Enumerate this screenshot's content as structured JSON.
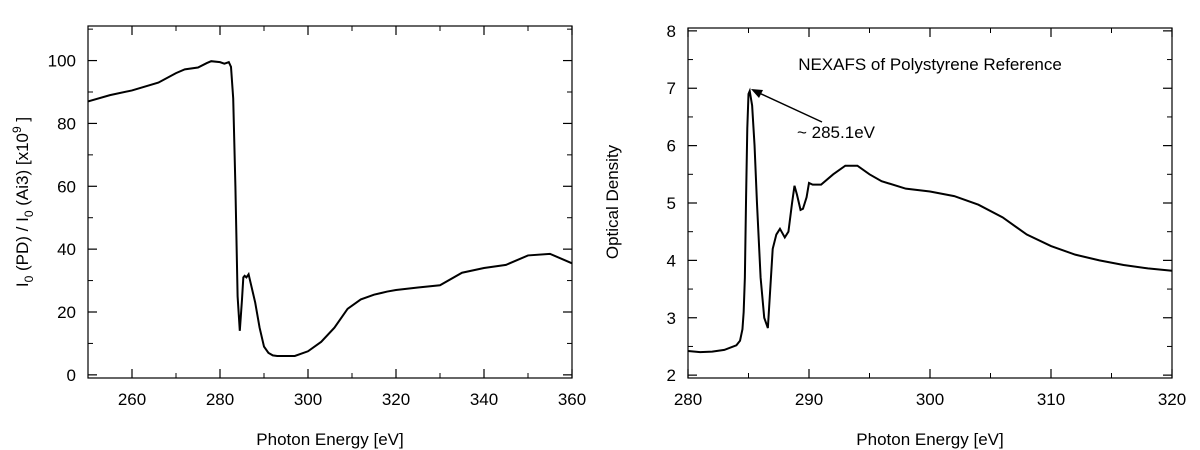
{
  "chart_data": [
    {
      "type": "line",
      "title": "",
      "xlabel": "Photon Energy [eV]",
      "ylabel_parts": {
        "i1": "I",
        "sub1": "0",
        "mid": " (PD) / I",
        "sub2": "0",
        "tail": " (Ai3) [x10",
        "sup": "9",
        "end": " ]"
      },
      "xlim": [
        250,
        360
      ],
      "ylim": [
        -1,
        111
      ],
      "xticks": [
        260,
        280,
        300,
        320,
        340,
        360
      ],
      "yticks": [
        0,
        20,
        40,
        60,
        80,
        100
      ],
      "series": [
        {
          "x": [
            250,
            255,
            260,
            266,
            270,
            272,
            275,
            277,
            278,
            280,
            281,
            282,
            282.5,
            283,
            283.5,
            284,
            284.5,
            285,
            285.3,
            285.6,
            286,
            286.5,
            287,
            287.5,
            288,
            289,
            290,
            291,
            292,
            293,
            295,
            297,
            300,
            303,
            306,
            309,
            312,
            315,
            318,
            320,
            325,
            330,
            335,
            340,
            345,
            350,
            355,
            360
          ],
          "y": [
            87,
            89,
            90.5,
            93,
            96,
            97.2,
            97.8,
            99.2,
            99.8,
            99.5,
            99,
            99.5,
            98,
            88,
            60,
            25,
            14,
            24,
            31,
            31.5,
            31,
            32,
            29,
            26,
            23,
            15,
            9,
            7,
            6.2,
            6,
            6,
            6,
            7.5,
            10.5,
            15,
            21,
            24,
            25.5,
            26.5,
            27,
            27.8,
            28.5,
            32.5,
            34,
            35,
            38,
            38.5,
            35.5
          ]
        }
      ]
    },
    {
      "type": "line",
      "title": "NEXAFS of Polystyrene Reference",
      "xlabel": "Photon Energy [eV]",
      "ylabel": "Optical Density",
      "xlim": [
        280,
        320
      ],
      "ylim": [
        1.95,
        8.05
      ],
      "xticks": [
        280,
        290,
        300,
        310,
        320
      ],
      "yticks": [
        2,
        3,
        4,
        5,
        6,
        7,
        8
      ],
      "annotation": {
        "text": "~ 285.1eV",
        "x": 285.1,
        "y": 6.95
      },
      "series": [
        {
          "x": [
            280,
            281,
            282,
            283,
            284,
            284.3,
            284.5,
            284.6,
            284.7,
            284.8,
            284.9,
            285,
            285.1,
            285.3,
            285.5,
            285.7,
            286,
            286.3,
            286.6,
            287,
            287.3,
            287.6,
            288,
            288.3,
            288.6,
            288.8,
            289,
            289.3,
            289.5,
            289.8,
            290,
            290.3,
            291,
            292,
            293,
            294,
            295,
            296,
            298,
            300,
            302,
            304,
            306,
            308,
            310,
            312,
            314,
            316,
            318,
            320
          ],
          "y": [
            2.42,
            2.4,
            2.41,
            2.44,
            2.52,
            2.6,
            2.8,
            3.1,
            3.7,
            5.1,
            6.3,
            6.9,
            6.95,
            6.7,
            6.0,
            5.0,
            3.7,
            3.0,
            2.82,
            4.2,
            4.45,
            4.55,
            4.4,
            4.5,
            5.0,
            5.3,
            5.15,
            4.88,
            4.9,
            5.1,
            5.35,
            5.32,
            5.32,
            5.5,
            5.65,
            5.65,
            5.5,
            5.38,
            5.25,
            5.2,
            5.12,
            4.97,
            4.75,
            4.45,
            4.25,
            4.1,
            4.0,
            3.92,
            3.86,
            3.82
          ]
        }
      ]
    }
  ]
}
